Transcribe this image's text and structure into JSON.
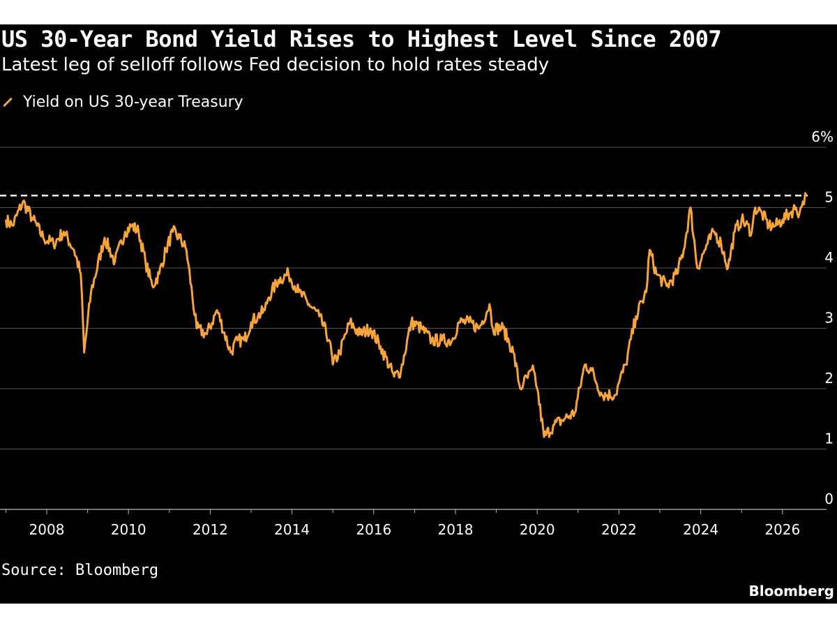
{
  "chart_data": {
    "type": "line",
    "title": "US 30-Year Bond Yield Rises to Highest Level Since 2007",
    "subtitle": "Latest leg of selloff follows Fed decision to hold rates steady",
    "series": [
      {
        "name": "Yield on US 30-year Treasury",
        "color": "#f7a43a",
        "x": [
          "2007-01",
          "2007-03",
          "2007-06",
          "2007-09",
          "2007-12",
          "2008-03",
          "2008-06",
          "2008-09",
          "2008-11",
          "2008-12",
          "2009-02",
          "2009-06",
          "2009-09",
          "2009-12",
          "2010-02",
          "2010-04",
          "2010-06",
          "2010-08",
          "2010-10",
          "2010-12",
          "2011-02",
          "2011-04",
          "2011-06",
          "2011-09",
          "2011-12",
          "2012-03",
          "2012-07",
          "2012-09",
          "2012-11",
          "2013-01",
          "2013-03",
          "2013-05",
          "2013-06",
          "2013-09",
          "2013-12",
          "2014-03",
          "2014-06",
          "2014-09",
          "2014-12",
          "2015-01",
          "2015-03",
          "2015-06",
          "2015-09",
          "2015-12",
          "2016-03",
          "2016-07",
          "2016-09",
          "2016-12",
          "2017-03",
          "2017-06",
          "2017-09",
          "2017-12",
          "2018-02",
          "2018-05",
          "2018-08",
          "2018-11",
          "2018-12",
          "2019-03",
          "2019-06",
          "2019-08",
          "2019-09",
          "2019-12",
          "2020-01",
          "2020-03",
          "2020-06",
          "2020-09",
          "2020-12",
          "2021-03",
          "2021-05",
          "2021-08",
          "2021-12",
          "2022-01",
          "2022-03",
          "2022-06",
          "2022-09",
          "2022-10",
          "2022-12",
          "2023-03",
          "2023-06",
          "2023-08",
          "2023-10",
          "2023-12",
          "2024-03",
          "2024-05",
          "2024-07",
          "2024-09",
          "2024-11",
          "2025-01",
          "2025-04",
          "2025-05",
          "2025-07",
          "2025-09",
          "2025-11",
          "2026-01",
          "2026-03",
          "2026-05",
          "2026-06",
          "2026-07",
          "2026-08"
        ],
        "values": [
          4.8,
          4.7,
          5.1,
          4.8,
          4.5,
          4.4,
          4.6,
          4.3,
          3.9,
          2.6,
          3.6,
          4.5,
          4.1,
          4.6,
          4.7,
          4.6,
          4.1,
          3.7,
          3.9,
          4.3,
          4.6,
          4.5,
          4.3,
          3.0,
          2.9,
          3.3,
          2.6,
          2.8,
          2.8,
          3.1,
          3.2,
          3.3,
          3.5,
          3.8,
          3.9,
          3.6,
          3.4,
          3.2,
          2.8,
          2.4,
          2.6,
          3.1,
          2.9,
          3.0,
          2.7,
          2.2,
          2.3,
          3.1,
          3.0,
          2.8,
          2.8,
          2.8,
          3.1,
          3.1,
          3.0,
          3.4,
          3.0,
          3.0,
          2.6,
          2.0,
          2.1,
          2.3,
          2.0,
          1.2,
          1.4,
          1.5,
          1.6,
          2.4,
          2.3,
          1.9,
          1.9,
          2.1,
          2.4,
          3.2,
          3.6,
          4.3,
          3.9,
          3.7,
          3.9,
          4.3,
          5.0,
          4.0,
          4.4,
          4.6,
          4.4,
          4.0,
          4.6,
          4.8,
          4.6,
          5.0,
          4.9,
          4.7,
          4.7,
          4.8,
          4.9,
          5.0,
          4.9,
          5.1,
          5.2
        ]
      }
    ],
    "y_ticks": [
      "0",
      "1",
      "2",
      "3",
      "4",
      "5",
      "6%"
    ],
    "x_ticks": [
      "2008",
      "2010",
      "2012",
      "2014",
      "2016",
      "2018",
      "2020",
      "2022",
      "2024",
      "2026"
    ],
    "ylim": [
      0,
      6
    ],
    "xlim": [
      "2007-01",
      "2026-08"
    ],
    "reference_line": {
      "value": 5.2,
      "style": "dashed",
      "color": "#ffffff"
    },
    "grid": true,
    "legend_position": "top-left",
    "source": "Source: Bloomberg",
    "brand": "Bloomberg"
  },
  "colors": {
    "background": "#000000",
    "text": "#ffffff",
    "line": "#f7a43a",
    "gridline": "#555555"
  }
}
